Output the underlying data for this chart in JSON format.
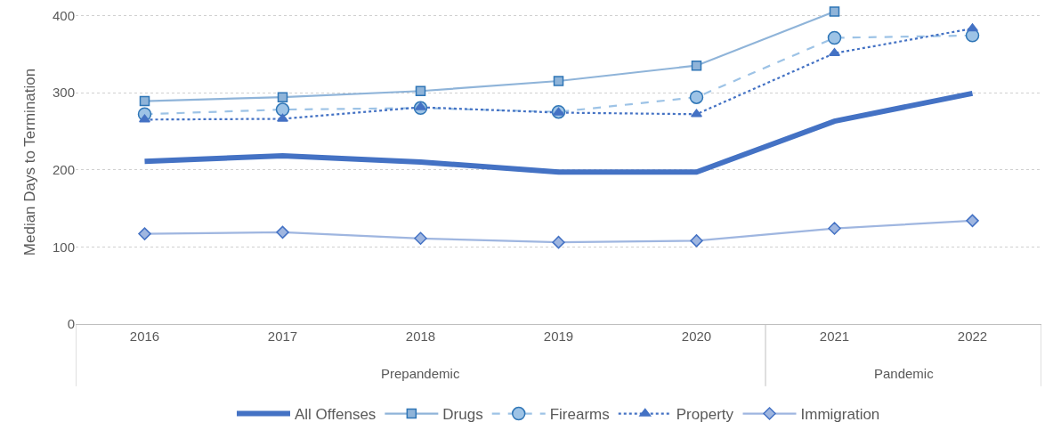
{
  "chart_data": {
    "type": "line",
    "ylabel": "Median Days to Termination",
    "categories": [
      "2016",
      "2017",
      "2018",
      "2019",
      "2020",
      "2021",
      "2022"
    ],
    "annotations": [
      "Prepandemic",
      "Pandemic"
    ],
    "series": [
      {
        "name": "All Offenses",
        "color": "#4472c4",
        "marker": "none",
        "line_style": "solid",
        "values": [
          211,
          218,
          210,
          197,
          197,
          263,
          299
        ]
      },
      {
        "name": "Drugs",
        "color": "#8fb4d9",
        "marker": "square",
        "line_style": "solid",
        "values": [
          289,
          294,
          302,
          315,
          335,
          405,
          null
        ]
      },
      {
        "name": "Firearms",
        "color": "#9dc3e6",
        "marker": "circle",
        "line_style": "dashed",
        "values": [
          272,
          278,
          280,
          275,
          294,
          371,
          374
        ]
      },
      {
        "name": "Property",
        "color": "#4472c4",
        "marker": "triangle",
        "line_style": "dotted",
        "values": [
          265,
          266,
          281,
          274,
          272,
          351,
          383
        ]
      },
      {
        "name": "Immigration",
        "color": "#9fb6e0",
        "marker": "diamond",
        "line_style": "solid",
        "values": [
          117,
          119,
          111,
          106,
          108,
          124,
          134
        ]
      }
    ],
    "ylim": [
      0,
      420
    ],
    "yticks": [
      0,
      100,
      200,
      300,
      400
    ],
    "grid": "y",
    "legend": "bottom"
  }
}
